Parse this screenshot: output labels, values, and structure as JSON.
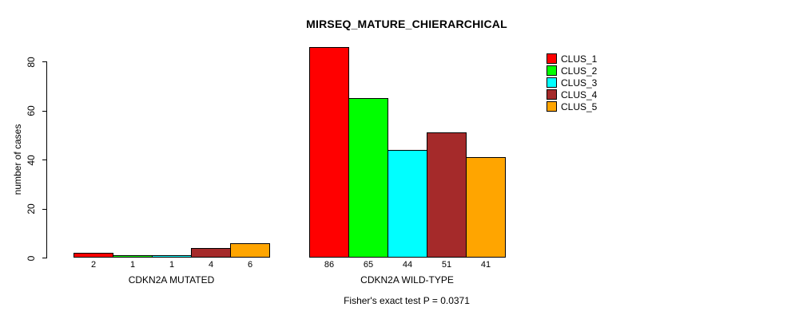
{
  "title": "MIRSEQ_MATURE_CHIERARCHICAL",
  "annotation": "Fisher's exact test P = 0.0371",
  "ylabel": "number of cases",
  "chart_data": {
    "type": "bar",
    "title": "MIRSEQ_MATURE_CHIERARCHICAL",
    "xlabel": "",
    "ylabel": "number of cases",
    "ylim": [
      0,
      80
    ],
    "yticks": [
      0,
      20,
      40,
      60,
      80
    ],
    "grid": false,
    "legend_position": "topright",
    "categories": [
      "CDKN2A MUTATED",
      "CDKN2A WILD-TYPE"
    ],
    "series": [
      {
        "name": "CLUS_1",
        "color": "#ff0000",
        "values": [
          2,
          86
        ]
      },
      {
        "name": "CLUS_2",
        "color": "#00ff00",
        "values": [
          1,
          65
        ]
      },
      {
        "name": "CLUS_3",
        "color": "#00ffff",
        "values": [
          1,
          44
        ]
      },
      {
        "name": "CLUS_4",
        "color": "#a52a2a",
        "values": [
          4,
          51
        ]
      },
      {
        "name": "CLUS_5",
        "color": "#ffa500",
        "values": [
          6,
          41
        ]
      }
    ],
    "bar_value_labels": [
      [
        2,
        1,
        1,
        4,
        6
      ],
      [
        86,
        65,
        44,
        51,
        41
      ]
    ],
    "annotation": "Fisher's exact test P = 0.0371"
  }
}
